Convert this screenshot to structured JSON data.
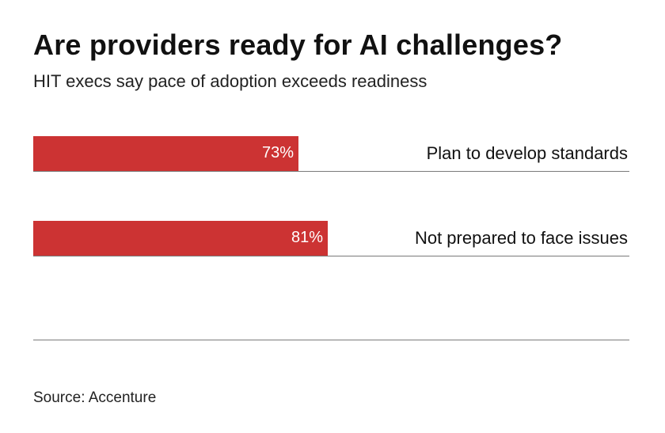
{
  "chart_data": {
    "type": "bar",
    "orientation": "horizontal",
    "title": "Are providers ready for AI challenges?",
    "subtitle": "HIT execs say pace of adoption exceeds readiness",
    "categories": [
      "Plan to develop standards",
      "Not prepared to face issues"
    ],
    "values": [
      73,
      81
    ],
    "value_labels": [
      "73%",
      "81%"
    ],
    "unit": "%",
    "xlim": [
      0,
      164
    ],
    "bar_color": "#cc3333",
    "source": "Source: Accenture"
  }
}
